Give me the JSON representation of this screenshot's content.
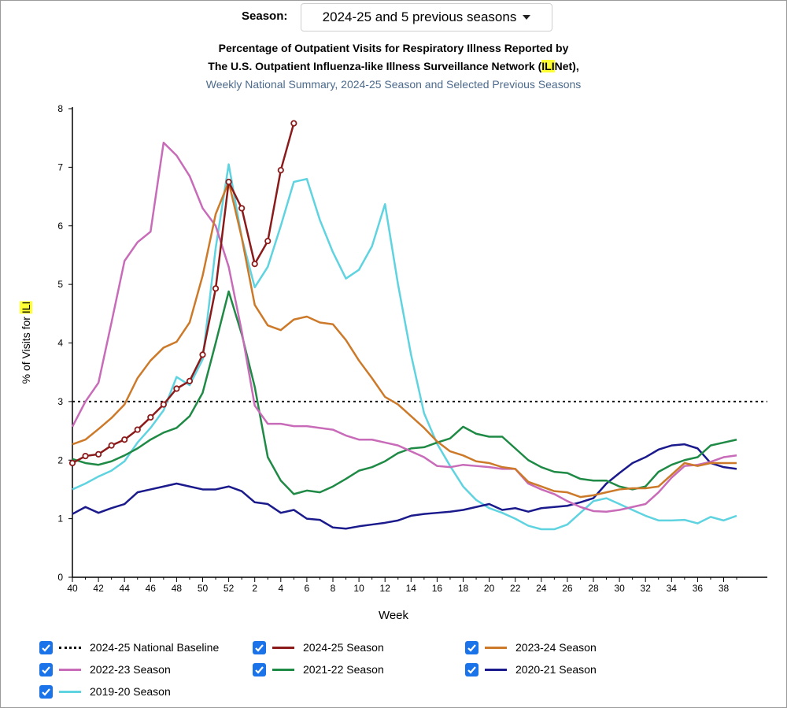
{
  "season_selector": {
    "label": "Season:",
    "selected": "2024-25 and 5 previous seasons"
  },
  "title": {
    "line1": "Percentage of Outpatient Visits for Respiratory Illness Reported by",
    "line2_prefix": "The U.S. Outpatient Influenza-like Illness Surveillance Network (",
    "line2_highlight": "ILI",
    "line2_suffix": "Net),",
    "line3": "Weekly National Summary, 2024-25 Season and Selected Previous Seasons"
  },
  "axis": {
    "ylabel_prefix": "% of Visits for ",
    "ylabel_highlight": "ILI",
    "xlabel": "Week"
  },
  "legend": [
    {
      "label": "2024-25 National Baseline",
      "color": "#111111",
      "style": "dotted",
      "checked": true
    },
    {
      "label": "2024-25 Season",
      "color": "#8b1a1a",
      "style": "solid",
      "checked": true
    },
    {
      "label": "2023-24 Season",
      "color": "#cc7a2a",
      "style": "solid",
      "checked": true
    },
    {
      "label": "2022-23 Season",
      "color": "#c86bb8",
      "style": "solid",
      "checked": true
    },
    {
      "label": "2021-22 Season",
      "color": "#1f8a45",
      "style": "solid",
      "checked": true
    },
    {
      "label": "2020-21 Season",
      "color": "#1a1a8c",
      "style": "solid",
      "checked": true
    },
    {
      "label": "2019-20 Season",
      "color": "#5fd3e0",
      "style": "solid",
      "checked": true
    }
  ],
  "chart_data": {
    "type": "line",
    "xlabel": "Week",
    "ylabel": "% of Visits for ILI",
    "ylim": [
      0,
      8
    ],
    "yticks": [
      0,
      1,
      2,
      3,
      4,
      5,
      6,
      7,
      8
    ],
    "x_week_ticks": [
      "40",
      "42",
      "44",
      "46",
      "48",
      "50",
      "52",
      "2",
      "4",
      "6",
      "8",
      "10",
      "12",
      "14",
      "16",
      "18",
      "20",
      "22",
      "24",
      "26",
      "28",
      "30",
      "32",
      "34",
      "36",
      "38"
    ],
    "grid": false,
    "legend_position": "bottom",
    "baseline": {
      "name": "2024-25 National Baseline",
      "value": 3.0,
      "color": "#111111"
    },
    "series": [
      {
        "name": "2024-25 Season",
        "color": "#8b1a1a",
        "markers": true,
        "values": [
          1.95,
          2.07,
          2.1,
          2.25,
          2.35,
          2.52,
          2.73,
          2.95,
          3.22,
          3.35,
          3.8,
          4.93,
          6.75,
          6.3,
          5.35,
          5.74,
          6.95,
          7.75
        ]
      },
      {
        "name": "2023-24 Season",
        "color": "#cc7a2a",
        "values": [
          2.27,
          2.35,
          2.53,
          2.72,
          2.95,
          3.4,
          3.7,
          3.92,
          4.02,
          4.35,
          5.15,
          6.2,
          6.75,
          5.8,
          4.65,
          4.3,
          4.22,
          4.4,
          4.45,
          4.35,
          4.32,
          4.05,
          3.7,
          3.4,
          3.08,
          2.95,
          2.75,
          2.55,
          2.32,
          2.15,
          2.08,
          1.98,
          1.95,
          1.88,
          1.85,
          1.63,
          1.55,
          1.47,
          1.45,
          1.37,
          1.4,
          1.45,
          1.5,
          1.52,
          1.52,
          1.55,
          1.75,
          1.95,
          1.9,
          1.95,
          1.95,
          1.95
        ]
      },
      {
        "name": "2022-23 Season",
        "color": "#c86bb8",
        "values": [
          2.57,
          3.0,
          3.32,
          4.35,
          5.4,
          5.72,
          5.9,
          7.42,
          7.2,
          6.85,
          6.3,
          6.0,
          5.3,
          4.2,
          2.93,
          2.62,
          2.62,
          2.58,
          2.58,
          2.55,
          2.52,
          2.42,
          2.35,
          2.35,
          2.3,
          2.25,
          2.15,
          2.05,
          1.9,
          1.88,
          1.92,
          1.9,
          1.88,
          1.85,
          1.85,
          1.6,
          1.5,
          1.42,
          1.3,
          1.2,
          1.13,
          1.12,
          1.15,
          1.2,
          1.25,
          1.45,
          1.7,
          1.9,
          1.92,
          1.97,
          2.05,
          2.08
        ]
      },
      {
        "name": "2021-22 Season",
        "color": "#1f8a45",
        "values": [
          2.02,
          1.95,
          1.92,
          1.98,
          2.08,
          2.2,
          2.35,
          2.47,
          2.55,
          2.75,
          3.15,
          4.0,
          4.88,
          4.15,
          3.25,
          2.05,
          1.65,
          1.42,
          1.48,
          1.45,
          1.55,
          1.68,
          1.82,
          1.88,
          1.98,
          2.12,
          2.2,
          2.22,
          2.3,
          2.37,
          2.57,
          2.45,
          2.4,
          2.4,
          2.2,
          2.0,
          1.88,
          1.8,
          1.78,
          1.68,
          1.65,
          1.65,
          1.55,
          1.5,
          1.55,
          1.8,
          1.92,
          2.0,
          2.05,
          2.25,
          2.3,
          2.35
        ]
      },
      {
        "name": "2020-21 Season",
        "color": "#1a1a8c",
        "values": [
          1.08,
          1.2,
          1.1,
          1.18,
          1.25,
          1.45,
          1.5,
          1.55,
          1.6,
          1.55,
          1.5,
          1.5,
          1.55,
          1.47,
          1.28,
          1.25,
          1.1,
          1.15,
          1.0,
          0.98,
          0.85,
          0.83,
          0.87,
          0.9,
          0.93,
          0.97,
          1.05,
          1.08,
          1.1,
          1.12,
          1.15,
          1.2,
          1.25,
          1.15,
          1.18,
          1.12,
          1.18,
          1.2,
          1.22,
          1.28,
          1.35,
          1.6,
          1.78,
          1.95,
          2.05,
          2.18,
          2.25,
          2.27,
          2.2,
          1.95,
          1.88,
          1.85
        ]
      },
      {
        "name": "2019-20 Season",
        "color": "#5fd3e0",
        "values": [
          1.5,
          1.6,
          1.72,
          1.82,
          1.98,
          2.3,
          2.55,
          2.85,
          3.42,
          3.28,
          3.72,
          5.62,
          7.05,
          5.8,
          4.95,
          5.3,
          6.0,
          6.75,
          6.8,
          6.1,
          5.55,
          5.1,
          5.25,
          5.65,
          6.37,
          5.0,
          3.8,
          2.8,
          2.28,
          1.9,
          1.55,
          1.32,
          1.18,
          1.1,
          1.0,
          0.88,
          0.82,
          0.82,
          0.9,
          1.1,
          1.3,
          1.35,
          1.25,
          1.15,
          1.05,
          0.97,
          0.97,
          0.98,
          0.92,
          1.03,
          0.97,
          1.05
        ]
      }
    ]
  }
}
